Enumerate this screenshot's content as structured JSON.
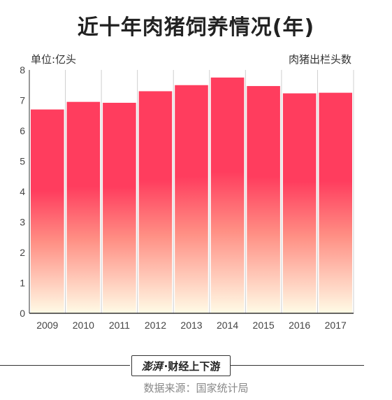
{
  "chart_data": {
    "type": "bar",
    "title": "近十年肉猪饲养情况(年)",
    "unit_label": "单位:亿头",
    "series_name": "肉猪出栏头数",
    "categories": [
      "2009",
      "2010",
      "2011",
      "2012",
      "2013",
      "2014",
      "2015",
      "2016",
      "2017"
    ],
    "values": [
      6.7,
      6.95,
      6.92,
      7.3,
      7.5,
      7.75,
      7.47,
      7.23,
      7.25
    ],
    "ylim": [
      0,
      8
    ],
    "yticks": [
      "0",
      "1",
      "2",
      "3",
      "4",
      "5",
      "6",
      "7",
      "8"
    ],
    "grid": true,
    "colors": {
      "top": "#ff3d5e",
      "mid": "#ff8f84",
      "bottom": "#fffbe6"
    }
  },
  "footer": {
    "logo_text": "澎湃",
    "brand": "·财经上下游",
    "source": "数据来源：国家统计局"
  }
}
